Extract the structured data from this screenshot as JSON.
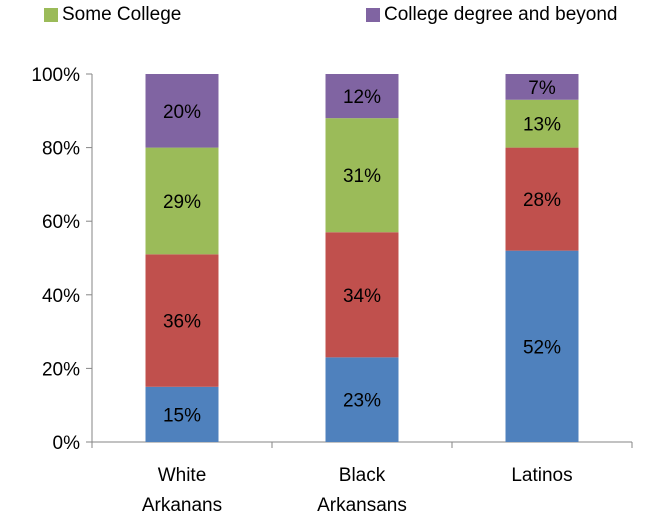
{
  "legend": [
    {
      "label": "Some College",
      "color": "#9BBB59"
    },
    {
      "label": "College degree and beyond",
      "color": "#8064A2"
    }
  ],
  "chart_data": {
    "type": "bar",
    "stacked": true,
    "categories": [
      [
        "White",
        "Arkanans"
      ],
      [
        "Black",
        "Arkansans"
      ],
      [
        "Latinos"
      ]
    ],
    "series": [
      {
        "color": "#4F81BD",
        "values": [
          15,
          23,
          52
        ],
        "labels": [
          "15%",
          "23%",
          "52%"
        ]
      },
      {
        "color": "#C0504D",
        "values": [
          36,
          34,
          28
        ],
        "labels": [
          "36%",
          "34%",
          "28%"
        ]
      },
      {
        "name": "Some College",
        "color": "#9BBB59",
        "values": [
          29,
          31,
          13
        ],
        "labels": [
          "29%",
          "31%",
          "13%"
        ]
      },
      {
        "name": "College degree and beyond",
        "color": "#8064A2",
        "values": [
          20,
          12,
          7
        ],
        "labels": [
          "20%",
          "12%",
          "7%"
        ]
      }
    ],
    "y_ticks": [
      "0%",
      "20%",
      "40%",
      "60%",
      "80%",
      "100%"
    ],
    "ylim": [
      0,
      100
    ],
    "grid": false,
    "legend_position": "top"
  }
}
